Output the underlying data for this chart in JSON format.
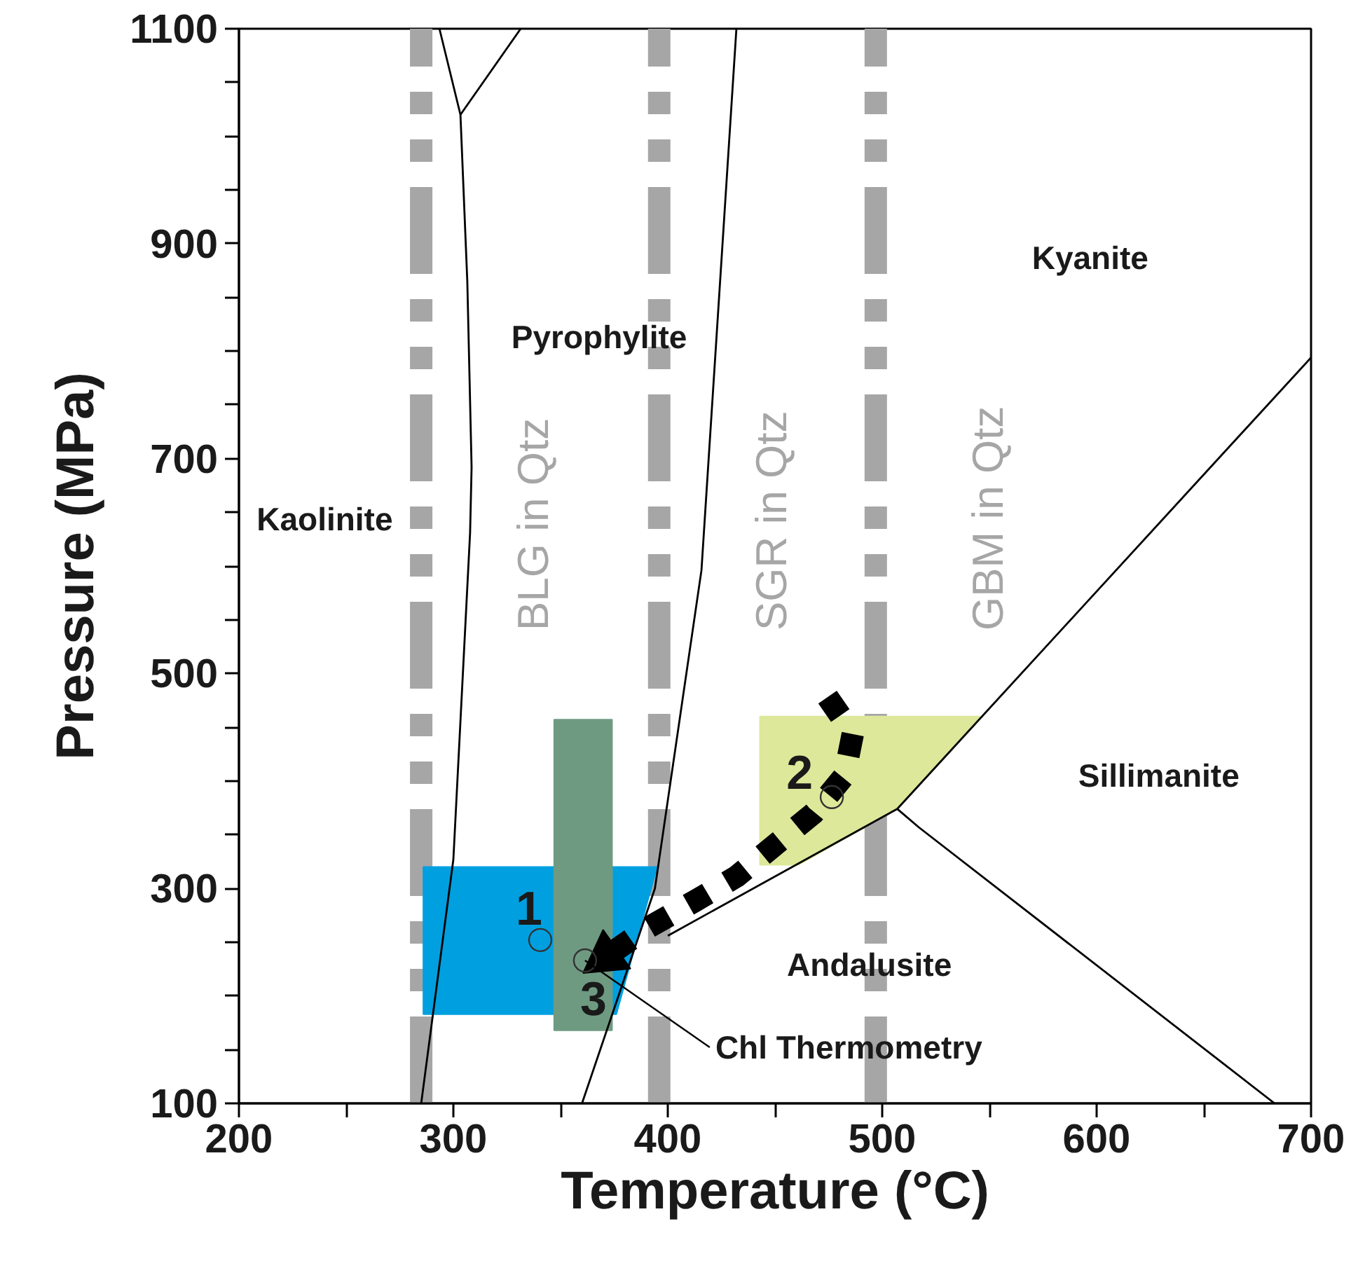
{
  "chart_data": {
    "type": "line",
    "xlabel": "Temperature (°C)",
    "ylabel": "Pressure (MPa)",
    "xlim": [
      200,
      700
    ],
    "ylim": [
      100,
      1100
    ],
    "xticks": [
      200,
      {
        "value": 250,
        "label": null
      },
      300,
      {
        "value": 350,
        "label": null
      },
      400,
      {
        "value": 450,
        "label": null
      },
      500,
      {
        "value": 550,
        "label": null
      },
      600,
      {
        "value": 650,
        "label": null
      },
      700
    ],
    "yticks": [
      100,
      {
        "value": 150,
        "label": null
      },
      {
        "value": 200,
        "label": null
      },
      {
        "value": 250,
        "label": null
      },
      300,
      {
        "value": 350,
        "label": null
      },
      {
        "value": 400,
        "label": null
      },
      {
        "value": 450,
        "label": null
      },
      500,
      {
        "value": 550,
        "label": null
      },
      {
        "value": 600,
        "label": null
      },
      {
        "value": 650,
        "label": null
      },
      700,
      {
        "value": 750,
        "label": null
      },
      {
        "value": 800,
        "label": null
      },
      {
        "value": 850,
        "label": null
      },
      900,
      {
        "value": 950,
        "label": null
      },
      {
        "value": 1000,
        "label": null
      },
      {
        "value": 1050,
        "label": null
      },
      1100
    ],
    "grid": false,
    "ref_lines": [
      {
        "axis": "x",
        "value": 285,
        "label": "BLG in Qtz",
        "color": "#a6a6a6",
        "line_style": "dashed"
      },
      {
        "axis": "x",
        "value": 396,
        "label": "SGR in Qtz",
        "color": "#a6a6a6",
        "line_style": "dashed"
      },
      {
        "axis": "x",
        "value": 497,
        "label": "GBM in Qtz",
        "color": "#a6a6a6",
        "line_style": "dashed"
      }
    ],
    "series": [
      {
        "type": "area",
        "color": "#00a0e0",
        "x": [
          286,
          395,
          376,
          286,
          286
        ],
        "values": [
          320,
          320,
          183,
          183,
          320
        ]
      },
      {
        "type": "area",
        "color": "#6f9a82",
        "x": [
          347,
          374,
          374,
          347,
          347
        ],
        "values": [
          457,
          457,
          168,
          168,
          457
        ]
      },
      {
        "type": "area",
        "color": "#dde89a",
        "x": [
          443,
          546,
          507,
          461,
          443,
          443
        ],
        "values": [
          460,
          460,
          374,
          322,
          322,
          460
        ]
      },
      {
        "color": "#000000",
        "x": [
          293.5,
          303.3,
          306.5,
          308.5,
          307.8,
          300,
          285
        ],
        "values": [
          1100,
          1020,
          865,
          692,
          631,
          327,
          100
        ]
      },
      {
        "color": "#000000",
        "x": [
          303.3,
          331.4
        ],
        "values": [
          1020,
          1100
        ]
      },
      {
        "color": "#000000",
        "x": [
          432,
          415.7,
          394,
          360
        ],
        "values": [
          1100,
          596,
          300,
          100
        ]
      },
      {
        "color": "#000000",
        "x": [
          400,
          507,
          700
        ],
        "values": [
          256,
          374,
          794
        ]
      },
      {
        "color": "#000000",
        "x": [
          507,
          517,
          683
        ],
        "values": [
          374,
          357,
          100
        ]
      },
      {
        "color": "#000000",
        "line_style": "dotted",
        "x": [
          474.5,
          486.3,
          482.4,
          468,
          449.7,
          432,
          412.4,
          389.5,
          371
        ],
        "values": [
          478,
          444,
          405,
          370,
          340,
          311,
          288,
          262,
          236
        ]
      },
      {
        "type": "scatter",
        "color": "#333333",
        "marker": "circle",
        "x": [
          340.5,
          361.4,
          476.5
        ],
        "values": [
          252,
          233,
          385
        ]
      }
    ],
    "annotations": [
      "Kaolinite",
      "Pyrophylite",
      "Kyanite",
      "Sillimanite",
      "Andalusite",
      {
        "text": "1",
        "x": 340.5,
        "y": 252
      },
      {
        "text": "2",
        "x": 476.5,
        "y": 385
      },
      {
        "text": "3",
        "x": 361.4,
        "y": 233
      },
      {
        "text": "Chl Thermometry",
        "x": 361.4,
        "y": 233
      }
    ]
  }
}
